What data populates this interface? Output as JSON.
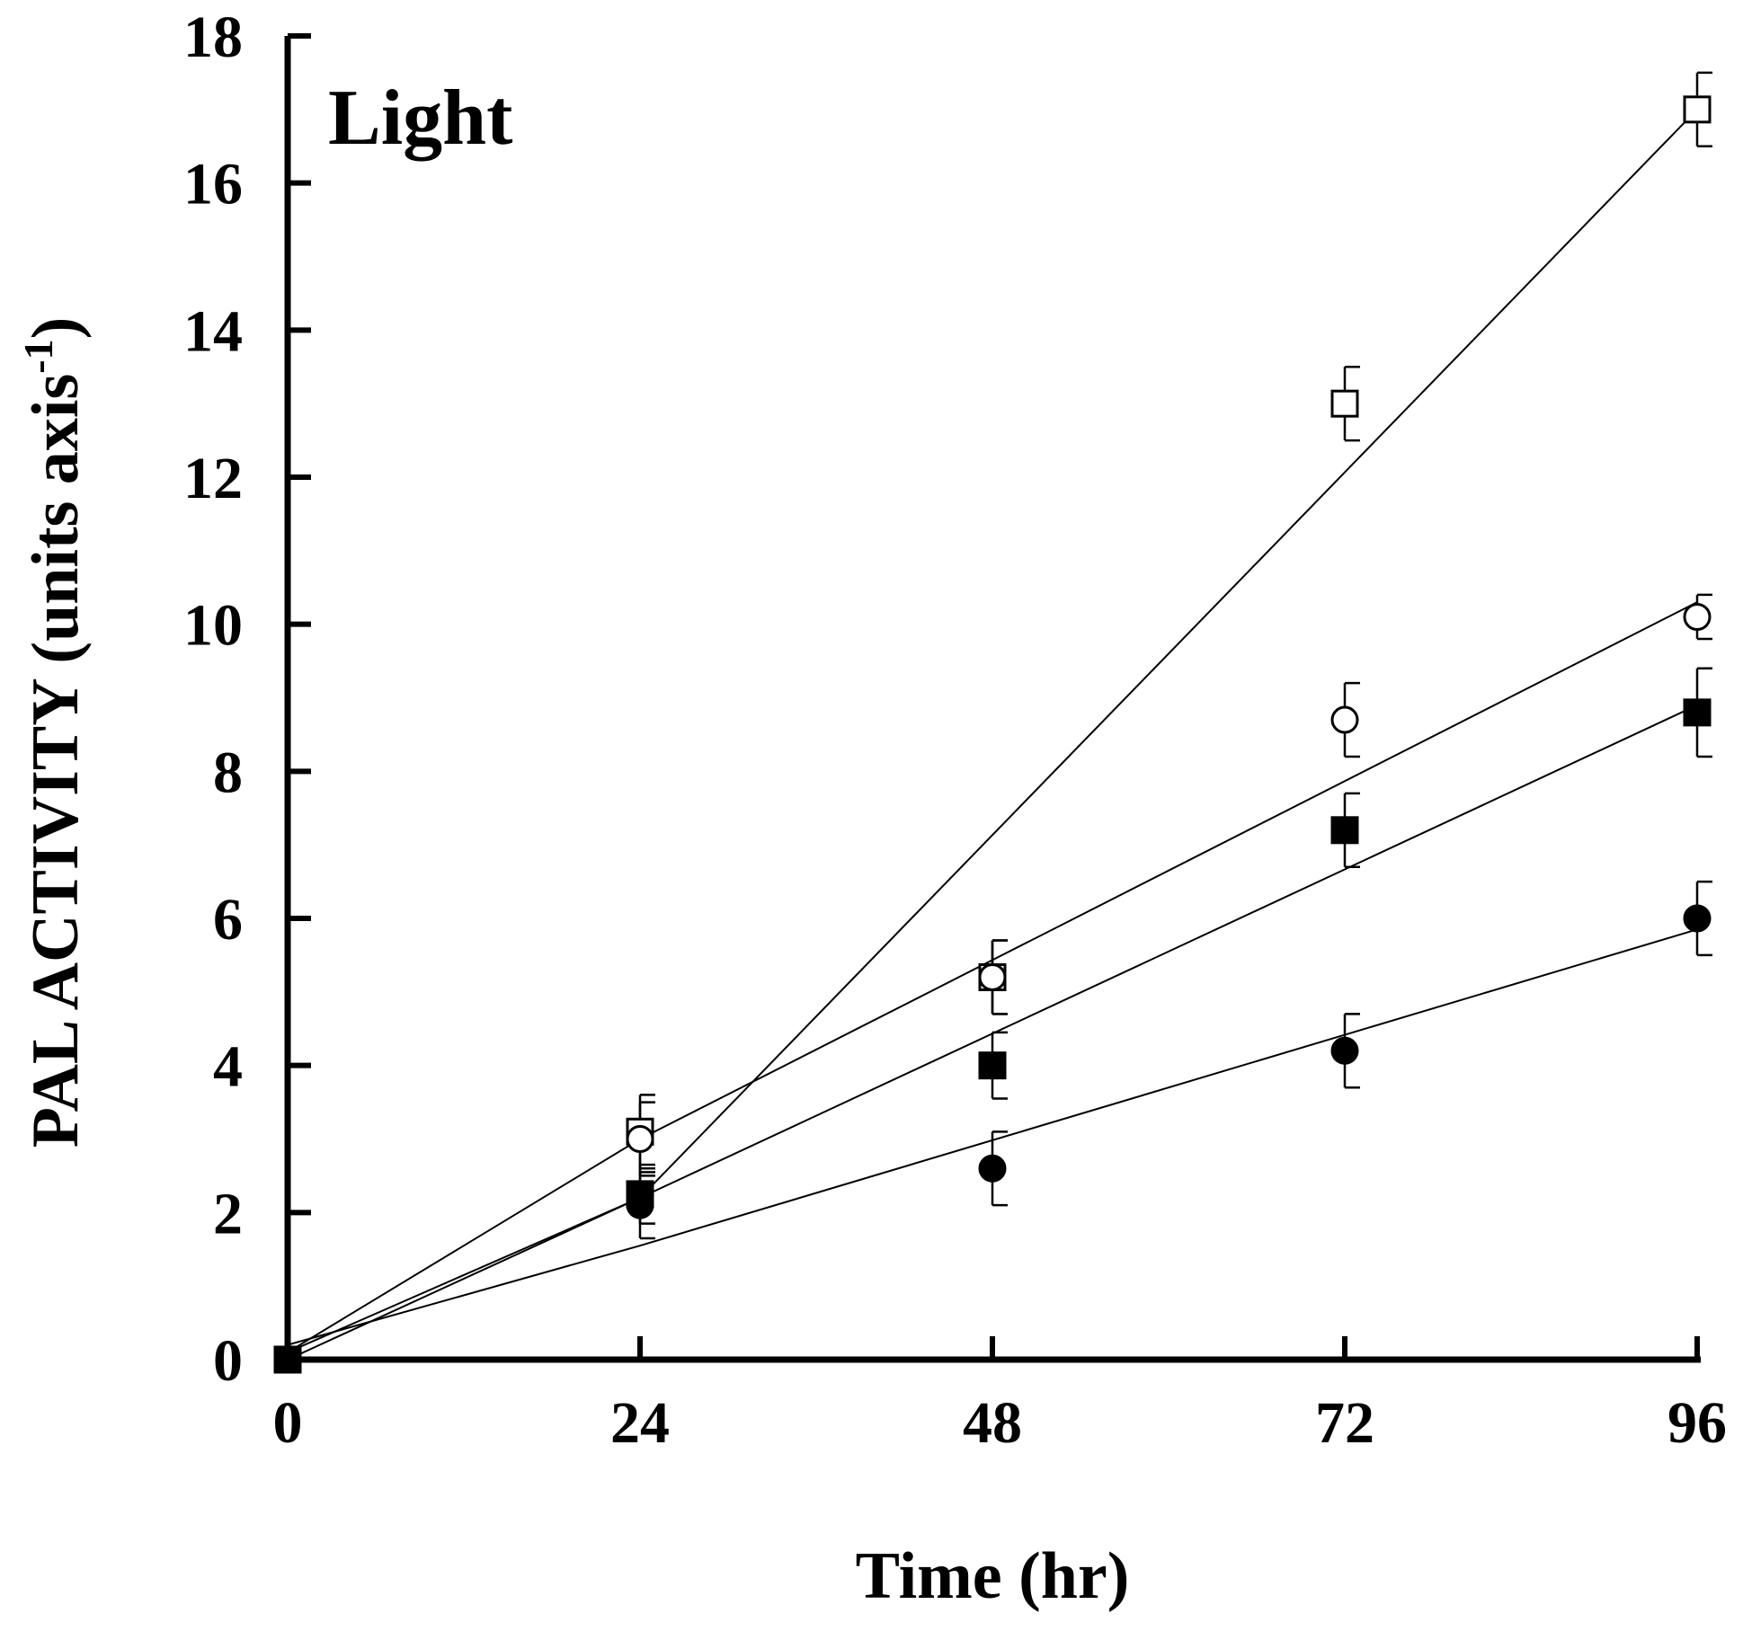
{
  "chart_data": {
    "type": "scatter",
    "title": "",
    "panel_label": "Light",
    "xlabel": "Time (hr)",
    "ylabel_main": "PAL ACTIVITY (units axis",
    "ylabel_sup": "-1",
    "ylabel_close": ")",
    "xlim": [
      0,
      96
    ],
    "ylim": [
      0,
      18
    ],
    "xticks": [
      0,
      24,
      48,
      72,
      96
    ],
    "yticks": [
      0,
      2,
      4,
      6,
      8,
      10,
      12,
      14,
      16,
      18
    ],
    "grid": false,
    "legend": "none",
    "series": [
      {
        "marker": "open-square",
        "x": [
          0,
          24,
          48,
          72,
          96
        ],
        "y": [
          0,
          3.1,
          5.2,
          13.0,
          17.0
        ],
        "err": [
          0,
          0.5,
          0.5,
          0.5,
          0.5
        ],
        "fit": [
          [
            0,
            0
          ],
          [
            24,
            2.2
          ],
          [
            96,
            17.0
          ]
        ]
      },
      {
        "marker": "open-circle",
        "x": [
          0,
          24,
          48,
          72,
          96
        ],
        "y": [
          0,
          3.0,
          5.2,
          8.7,
          10.1
        ],
        "err": [
          0,
          0.5,
          0.5,
          0.5,
          0.3
        ],
        "fit": [
          [
            0,
            0.1
          ],
          [
            24,
            3.0
          ],
          [
            96,
            10.3
          ]
        ]
      },
      {
        "marker": "filled-square",
        "x": [
          0,
          24,
          48,
          72,
          96
        ],
        "y": [
          0,
          2.25,
          4.0,
          7.2,
          8.8
        ],
        "err": [
          0,
          0.4,
          0.45,
          0.5,
          0.6
        ],
        "fit": [
          [
            0,
            0.1
          ],
          [
            24,
            2.2
          ],
          [
            96,
            8.9
          ]
        ]
      },
      {
        "marker": "filled-circle",
        "x": [
          0,
          24,
          48,
          72,
          96
        ],
        "y": [
          0,
          2.1,
          2.6,
          4.2,
          6.0
        ],
        "err": [
          0,
          0.45,
          0.5,
          0.5,
          0.5
        ],
        "fit": [
          [
            0,
            0.2
          ],
          [
            24,
            1.55
          ],
          [
            96,
            5.85
          ]
        ]
      }
    ]
  }
}
